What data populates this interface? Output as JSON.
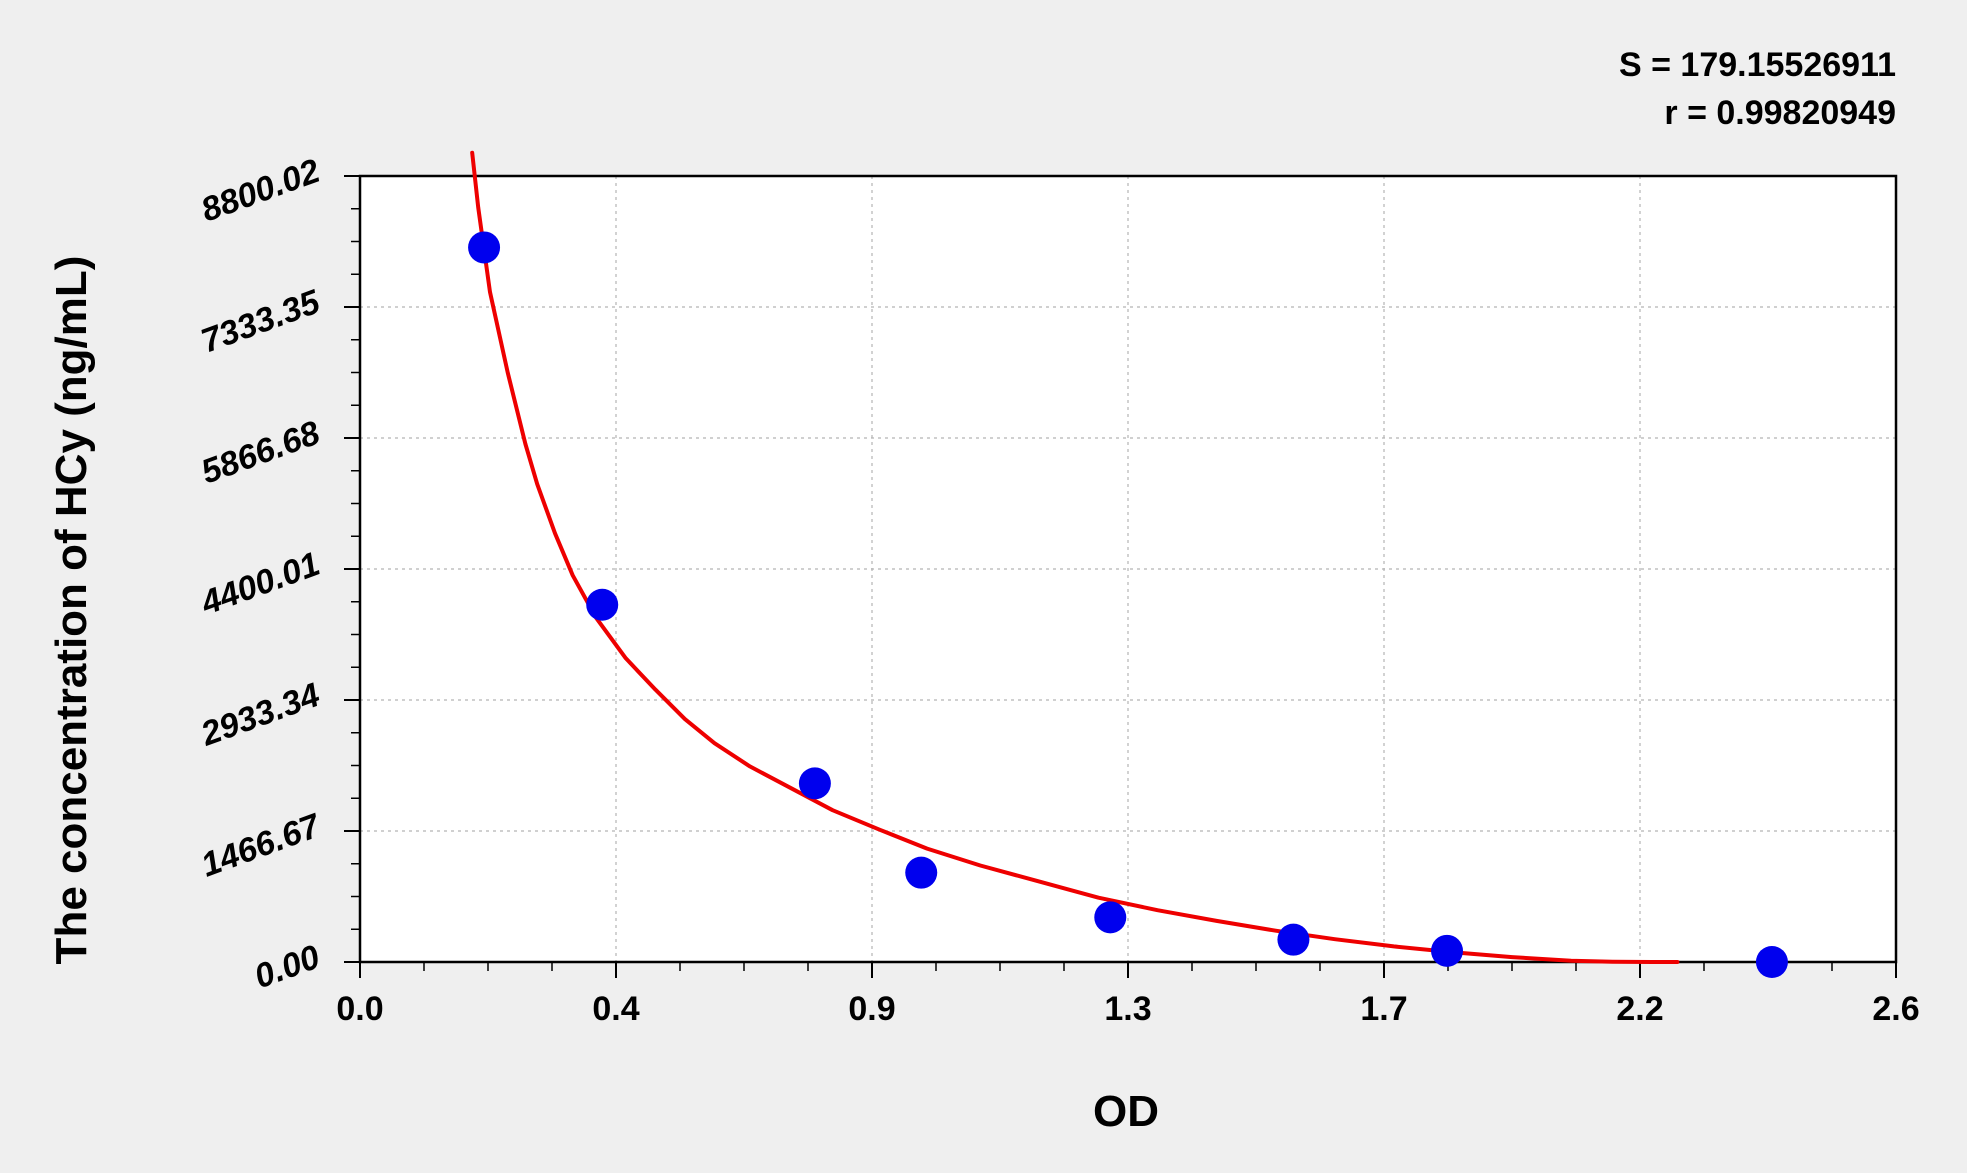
{
  "colors": {
    "background": "#efefef",
    "plot_background": "#ffffff",
    "curve": "#ee0000",
    "points": "#0000ee",
    "grid": "#b4b4b4",
    "axis": "#000000"
  },
  "stats": {
    "s_label": "S = 179.15526911",
    "r_label": "r = 0.99820949"
  },
  "chart_data": {
    "type": "scatter",
    "xlabel": "OD",
    "ylabel": "The concentration of HCy (ng/mL)",
    "xlim": [
      0,
      2.6
    ],
    "ylim": [
      0,
      8800.02
    ],
    "x_tick_labels": [
      "0.0",
      "0.4",
      "0.9",
      "1.3",
      "1.7",
      "2.2",
      "2.6"
    ],
    "y_tick_labels": [
      "0.00",
      "1466.67",
      "2933.34",
      "4400.01",
      "5866.68",
      "7333.35",
      "8800.02"
    ],
    "grid": true,
    "series": [
      {
        "type": "scatter",
        "points": [
          {
            "x": 0.21,
            "y": 8000
          },
          {
            "x": 0.41,
            "y": 4000
          },
          {
            "x": 0.77,
            "y": 2000
          },
          {
            "x": 0.95,
            "y": 1000
          },
          {
            "x": 1.27,
            "y": 500
          },
          {
            "x": 1.58,
            "y": 250
          },
          {
            "x": 1.84,
            "y": 125
          },
          {
            "x": 2.39,
            "y": 0
          }
        ]
      },
      {
        "type": "line",
        "points": [
          {
            "x": 0.19,
            "y": 9060
          },
          {
            "x": 0.2,
            "y": 8450
          },
          {
            "x": 0.22,
            "y": 7500
          },
          {
            "x": 0.25,
            "y": 6600
          },
          {
            "x": 0.28,
            "y": 5800
          },
          {
            "x": 0.3,
            "y": 5350
          },
          {
            "x": 0.33,
            "y": 4800
          },
          {
            "x": 0.36,
            "y": 4330
          },
          {
            "x": 0.4,
            "y": 3850
          },
          {
            "x": 0.45,
            "y": 3400
          },
          {
            "x": 0.5,
            "y": 3050
          },
          {
            "x": 0.55,
            "y": 2720
          },
          {
            "x": 0.6,
            "y": 2450
          },
          {
            "x": 0.66,
            "y": 2190
          },
          {
            "x": 0.72,
            "y": 1980
          },
          {
            "x": 0.8,
            "y": 1700
          },
          {
            "x": 0.88,
            "y": 1480
          },
          {
            "x": 0.96,
            "y": 1270
          },
          {
            "x": 1.05,
            "y": 1080
          },
          {
            "x": 1.15,
            "y": 900
          },
          {
            "x": 1.25,
            "y": 720
          },
          {
            "x": 1.35,
            "y": 580
          },
          {
            "x": 1.45,
            "y": 460
          },
          {
            "x": 1.55,
            "y": 350
          },
          {
            "x": 1.65,
            "y": 255
          },
          {
            "x": 1.75,
            "y": 175
          },
          {
            "x": 1.85,
            "y": 110
          },
          {
            "x": 1.95,
            "y": 55
          },
          {
            "x": 2.05,
            "y": 15
          },
          {
            "x": 2.12,
            "y": 3
          },
          {
            "x": 2.2,
            "y": 0
          },
          {
            "x": 2.23,
            "y": 0
          }
        ]
      }
    ]
  }
}
